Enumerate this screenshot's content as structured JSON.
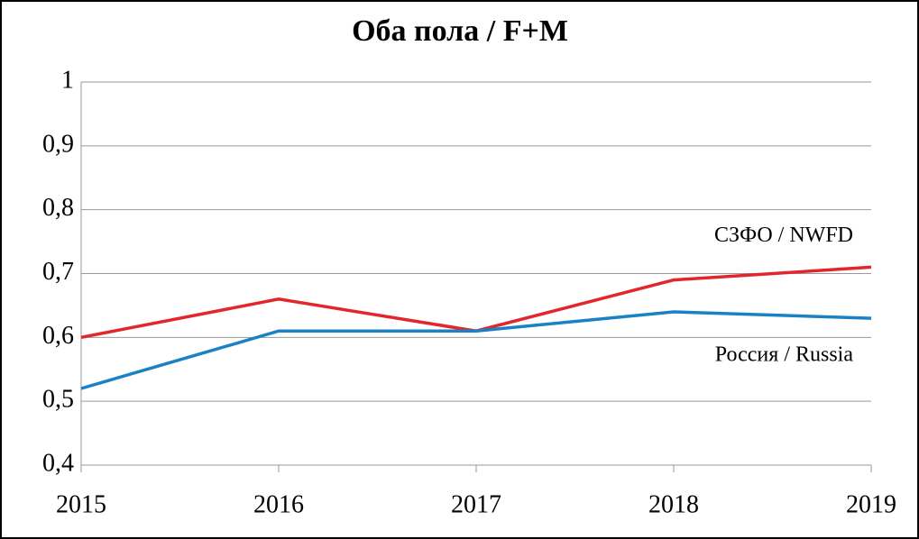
{
  "chart_data": {
    "type": "line",
    "title": "Оба пола / F+M",
    "x": [
      2015,
      2016,
      2017,
      2018,
      2019
    ],
    "xlim": [
      2015,
      2019
    ],
    "xticks": [
      2015,
      2016,
      2017,
      2018,
      2019
    ],
    "ylim": [
      0.4,
      1
    ],
    "yticks": [
      {
        "value": 0.4,
        "label": "0,4"
      },
      {
        "value": 0.5,
        "label": "0,5"
      },
      {
        "value": 0.6,
        "label": "0,6"
      },
      {
        "value": 0.7,
        "label": "0,7"
      },
      {
        "value": 0.8,
        "label": "0,8"
      },
      {
        "value": 0.9,
        "label": "0,9"
      },
      1
    ],
    "grid": true,
    "series": [
      {
        "name": "СЗФО / NWFD",
        "color": "#e3262b",
        "values": [
          0.6,
          0.66,
          0.61,
          0.69,
          0.71
        ]
      },
      {
        "name": "Россия / Russia",
        "color": "#1a82c4",
        "values": [
          0.52,
          0.61,
          0.61,
          0.64,
          0.63
        ]
      }
    ]
  }
}
